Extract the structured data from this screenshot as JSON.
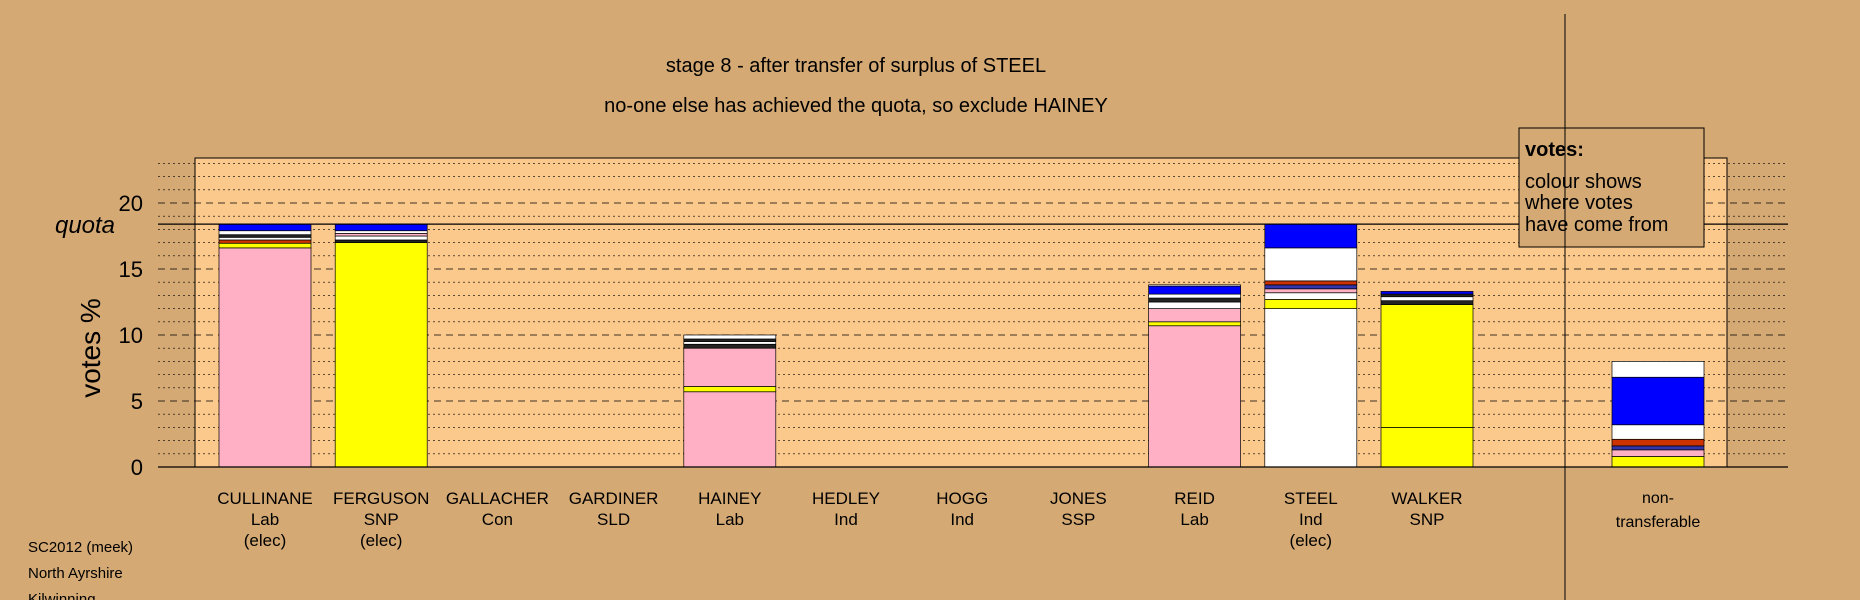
{
  "colors": {
    "background": "#d4a974",
    "panel": "#fcc98c",
    "Lab": "#ffb0c4",
    "SNP": "#ffff00",
    "Ind": "#ffffff",
    "Con": "#0000ff",
    "other": "#cc3300",
    "dark": "#222222"
  },
  "titles": {
    "line1": "stage 8 - after transfer of surplus of STEEL",
    "line2": "no-one else has achieved the quota, so exclude HAINEY"
  },
  "legend": {
    "title": "votes:",
    "lines": [
      "colour shows",
      "where votes",
      "have come from"
    ]
  },
  "footer": [
    "SC2012 (meek)",
    "North Ayrshire",
    "Kilwinning"
  ],
  "chart_data": {
    "type": "bar",
    "stacked": true,
    "ylabel": "votes %",
    "yticks": [
      0,
      5,
      10,
      15,
      20
    ],
    "ylim": [
      0,
      23.5
    ],
    "quota": 18.4,
    "quota_label": "quota",
    "grid": "dotted every 1%, dashed every 5%",
    "categories": [
      {
        "name": "CULLINANE",
        "party": "Lab",
        "status": "(elec)",
        "total": 18.4,
        "segments": [
          {
            "color": "#ffb0c4",
            "value": 16.6
          },
          {
            "color": "#ffff00",
            "value": 0.35
          },
          {
            "color": "#cc3300",
            "value": 0.25
          },
          {
            "color": "#ffffff",
            "value": 0.2
          },
          {
            "color": "#222222",
            "value": 0.2
          },
          {
            "color": "#ffffff",
            "value": 0.3
          },
          {
            "color": "#0000ff",
            "value": 0.5
          }
        ]
      },
      {
        "name": "FERGUSON",
        "party": "SNP",
        "status": "(elec)",
        "total": 18.4,
        "segments": [
          {
            "color": "#ffff00",
            "value": 17.0
          },
          {
            "color": "#222222",
            "value": 0.2
          },
          {
            "color": "#ffffff",
            "value": 0.3
          },
          {
            "color": "#ffb0c4",
            "value": 0.2
          },
          {
            "color": "#ffffff",
            "value": 0.2
          },
          {
            "color": "#0000ff",
            "value": 0.5
          }
        ]
      },
      {
        "name": "GALLACHER",
        "party": "Con",
        "status": "",
        "total": 0,
        "segments": []
      },
      {
        "name": "GARDINER",
        "party": "SLD",
        "status": "",
        "total": 0,
        "segments": []
      },
      {
        "name": "HAINEY",
        "party": "Lab",
        "status": "",
        "total": 10.0,
        "segments": [
          {
            "color": "#ffb0c4",
            "value": 5.7
          },
          {
            "color": "#ffff00",
            "value": 0.4
          },
          {
            "color": "#ffb0c4",
            "value": 2.9
          },
          {
            "color": "#222222",
            "value": 0.3
          },
          {
            "color": "#ffffff",
            "value": 0.2
          },
          {
            "color": "#222222",
            "value": 0.2
          },
          {
            "color": "#ffffff",
            "value": 0.3
          }
        ]
      },
      {
        "name": "HEDLEY",
        "party": "Ind",
        "status": "",
        "total": 0,
        "segments": []
      },
      {
        "name": "HOGG",
        "party": "Ind",
        "status": "",
        "total": 0,
        "segments": []
      },
      {
        "name": "JONES",
        "party": "SSP",
        "status": "",
        "total": 0,
        "segments": []
      },
      {
        "name": "REID",
        "party": "Lab",
        "status": "",
        "total": 13.8,
        "segments": [
          {
            "color": "#ffb0c4",
            "value": 10.7
          },
          {
            "color": "#ffff00",
            "value": 0.3
          },
          {
            "color": "#ffb0c4",
            "value": 1.0
          },
          {
            "color": "#ffffff",
            "value": 0.5
          },
          {
            "color": "#222222",
            "value": 0.3
          },
          {
            "color": "#ffffff",
            "value": 0.3
          },
          {
            "color": "#0000ff",
            "value": 0.6
          },
          {
            "color": "#ffffff",
            "value": 0.1
          }
        ]
      },
      {
        "name": "STEEL",
        "party": "Ind",
        "status": "(elec)",
        "total": 18.4,
        "segments": [
          {
            "color": "#ffffff",
            "value": 12.0
          },
          {
            "color": "#ffff00",
            "value": 0.7
          },
          {
            "color": "#ffffff",
            "value": 0.5
          },
          {
            "color": "#ffb0c4",
            "value": 0.3
          },
          {
            "color": "#3333aa",
            "value": 0.3
          },
          {
            "color": "#cc3300",
            "value": 0.3
          },
          {
            "color": "#ffffff",
            "value": 2.5
          },
          {
            "color": "#0000ff",
            "value": 1.8
          }
        ]
      },
      {
        "name": "WALKER",
        "party": "SNP",
        "status": "",
        "total": 13.3,
        "segments": [
          {
            "color": "#ffff00",
            "value": 3.0
          },
          {
            "color": "#ffff00",
            "value": 9.3
          },
          {
            "color": "#222222",
            "value": 0.3
          },
          {
            "color": "#ffffff",
            "value": 0.3
          },
          {
            "color": "#222222",
            "value": 0.2
          },
          {
            "color": "#0000ff",
            "value": 0.2
          }
        ]
      }
    ],
    "nontransferable": {
      "label_lines": [
        "non-",
        "transferable"
      ],
      "total": 8.0,
      "segments": [
        {
          "color": "#ffff00",
          "value": 0.8
        },
        {
          "color": "#ffb0c4",
          "value": 0.5
        },
        {
          "color": "#3333aa",
          "value": 0.3
        },
        {
          "color": "#cc3300",
          "value": 0.5
        },
        {
          "color": "#ffffff",
          "value": 1.1
        },
        {
          "color": "#0000ff",
          "value": 3.6
        },
        {
          "color": "#ffffff",
          "value": 1.2
        }
      ]
    }
  }
}
